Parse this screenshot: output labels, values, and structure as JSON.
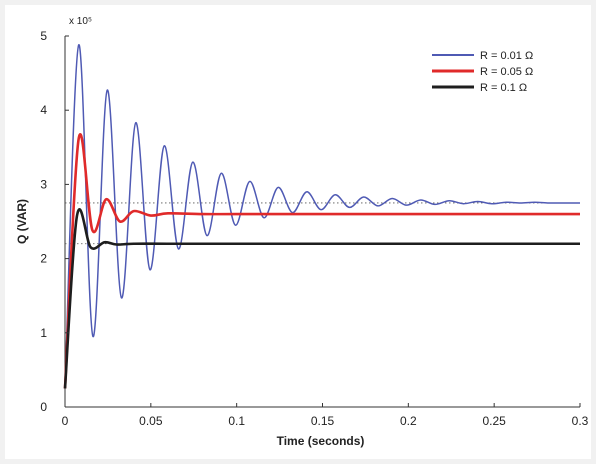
{
  "chart_data": {
    "type": "line",
    "xlabel": "Time (seconds)",
    "ylabel": "Q (VAR)",
    "y_multiplier": "x 10⁵",
    "xlim": [
      0,
      0.3
    ],
    "ylim": [
      0,
      5
    ],
    "x_ticks": [
      0,
      0.05,
      0.1,
      0.15,
      0.2,
      0.25,
      0.3
    ],
    "x_tick_labels": [
      "0",
      "0.05",
      "0.1",
      "0.15",
      "0.2",
      "0.25",
      "0.3"
    ],
    "y_ticks": [
      0,
      1,
      2,
      3,
      4,
      5
    ],
    "y_tick_labels": [
      "0",
      "1",
      "2",
      "3",
      "4",
      "5"
    ],
    "grid": false,
    "legend_position": "top-right",
    "reference_lines": [
      2.75,
      2.2
    ],
    "series": [
      {
        "name": "R = 0.01 Ω",
        "color": "#4f5ab4",
        "x": [
          0,
          0.008,
          0.0163,
          0.0246,
          0.0329,
          0.0412,
          0.0495,
          0.0578,
          0.0661,
          0.0744,
          0.0827,
          0.091,
          0.0993,
          0.1076,
          0.1159,
          0.1242,
          0.1325,
          0.1408,
          0.1491,
          0.1574,
          0.1657,
          0.174,
          0.1823,
          0.1906,
          0.1989,
          0.2072,
          0.2155,
          0.2238,
          0.2321,
          0.2404,
          0.2487,
          0.257,
          0.2653,
          0.2736,
          0.2819,
          0.29,
          0.3
        ],
        "y": [
          0.25,
          4.88,
          0.95,
          4.27,
          1.47,
          3.83,
          1.85,
          3.52,
          2.13,
          3.3,
          2.31,
          3.15,
          2.45,
          3.04,
          2.55,
          2.96,
          2.62,
          2.9,
          2.66,
          2.86,
          2.69,
          2.83,
          2.71,
          2.81,
          2.72,
          2.79,
          2.73,
          2.78,
          2.74,
          2.77,
          2.74,
          2.76,
          2.75,
          2.76,
          2.75,
          2.75,
          2.75
        ]
      },
      {
        "name": "R = 0.05 Ω",
        "color": "#e02a2a",
        "x": [
          0,
          0.008,
          0.016,
          0.024,
          0.032,
          0.04,
          0.05,
          0.06,
          0.08,
          0.1,
          0.15,
          0.2,
          0.25,
          0.3
        ],
        "y": [
          0.25,
          3.62,
          2.38,
          2.8,
          2.5,
          2.64,
          2.58,
          2.61,
          2.6,
          2.6,
          2.6,
          2.6,
          2.6,
          2.6
        ]
      },
      {
        "name": "R = 0.1 Ω",
        "color": "#1e1e1e",
        "x": [
          0,
          0.007,
          0.015,
          0.023,
          0.03,
          0.04,
          0.06,
          0.1,
          0.15,
          0.2,
          0.25,
          0.3
        ],
        "y": [
          0.25,
          2.58,
          2.15,
          2.22,
          2.19,
          2.2,
          2.2,
          2.2,
          2.2,
          2.2,
          2.2,
          2.2
        ]
      }
    ]
  }
}
